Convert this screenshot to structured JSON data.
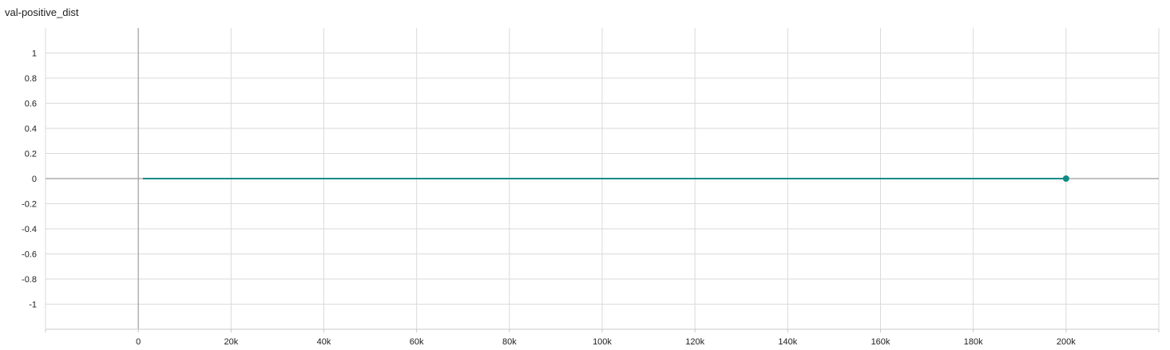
{
  "chart_data": {
    "type": "line",
    "title": "val-positive_dist",
    "xlabel": "",
    "ylabel": "",
    "xlim": [
      -20000,
      220000
    ],
    "ylim": [
      -1.2,
      1.2
    ],
    "x_ticks": [
      0,
      20000,
      40000,
      60000,
      80000,
      100000,
      120000,
      140000,
      160000,
      180000,
      200000
    ],
    "x_tick_labels": [
      "0",
      "20k",
      "40k",
      "60k",
      "80k",
      "100k",
      "120k",
      "140k",
      "160k",
      "180k",
      "200k"
    ],
    "y_ticks": [
      1,
      0.8,
      0.6,
      0.4,
      0.2,
      0,
      -0.2,
      -0.4,
      -0.6,
      -0.8,
      -1
    ],
    "y_tick_labels": [
      "1",
      "0.8",
      "0.6",
      "0.4",
      "0.2",
      "0",
      "-0.2",
      "-0.4",
      "-0.6",
      "-0.8",
      "-1"
    ],
    "grid": true,
    "series": [
      {
        "color": "#0f8c87",
        "x": [
          1000,
          200000
        ],
        "y": [
          0,
          0
        ],
        "marker_last": true
      }
    ]
  }
}
